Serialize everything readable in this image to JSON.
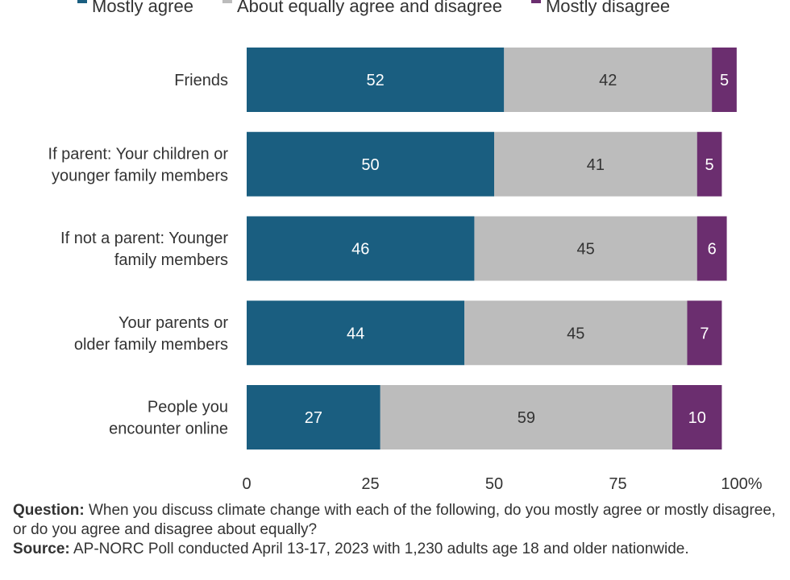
{
  "chart_data": {
    "type": "bar",
    "orientation": "horizontal",
    "stacked": true,
    "categories": [
      [
        "Friends"
      ],
      [
        "If parent: Your children or",
        "younger family members"
      ],
      [
        "If not a parent: Younger",
        "family members"
      ],
      [
        "Your parents or",
        "older family members"
      ],
      [
        "People you",
        "encounter online"
      ]
    ],
    "series": [
      {
        "name": "Mostly agree",
        "color": "#1a5e80",
        "label_color": "#ffffff",
        "values": [
          52,
          50,
          46,
          44,
          27
        ]
      },
      {
        "name": "About equally agree and disagree",
        "color": "#bcbcbc",
        "label_color": "#333333",
        "values": [
          42,
          41,
          45,
          45,
          59
        ]
      },
      {
        "name": "Mostly disagree",
        "color": "#6b2e6f",
        "label_color": "#ffffff",
        "values": [
          5,
          5,
          6,
          7,
          10
        ]
      }
    ],
    "xlim": [
      0,
      100
    ],
    "xticks": [
      {
        "value": 0,
        "label": "0"
      },
      {
        "value": 25,
        "label": "25"
      },
      {
        "value": 50,
        "label": "50"
      },
      {
        "value": 75,
        "label": "75"
      },
      {
        "value": 100,
        "label": "100%"
      }
    ],
    "legend_position": "top",
    "grid": false
  },
  "footnote": {
    "question_label": "Question:",
    "question_text": " When you discuss climate change with each of the following, do you mostly agree or mostly disagree, or do you agree and disagree about equally?",
    "source_label": "Source:",
    "source_text": " AP-NORC Poll conducted April 13-17, 2023 with 1,230 adults age 18 and older nationwide."
  }
}
